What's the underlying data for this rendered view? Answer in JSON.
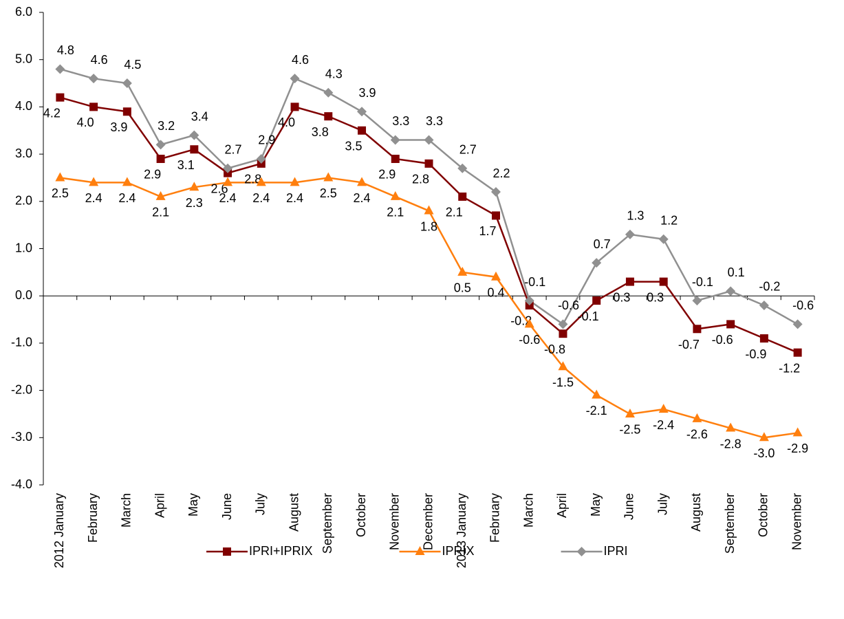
{
  "chart_data": {
    "type": "line",
    "categories": [
      "2012 January",
      "February",
      "March",
      "April",
      "May",
      "June",
      "July",
      "August",
      "September",
      "October",
      "November",
      "December",
      "2013 January",
      "February",
      "March",
      "April",
      "May",
      "June",
      "July",
      "August",
      "September",
      "October",
      "November"
    ],
    "series": [
      {
        "name": "IPRI+IPRIX",
        "color": "#800000",
        "marker": "square",
        "values": [
          4.2,
          4.0,
          3.9,
          2.9,
          3.1,
          2.6,
          2.8,
          4.0,
          3.8,
          3.5,
          2.9,
          2.8,
          2.1,
          1.7,
          -0.2,
          -0.8,
          -0.1,
          0.3,
          0.3,
          -0.7,
          -0.6,
          -0.9,
          -1.2
        ],
        "value_labels": [
          "4.2",
          "4.0",
          "3.9",
          "2.9",
          "3.1",
          "2.6",
          "2.8",
          "4.0",
          "3.8",
          "3.5",
          "2.9",
          "2.8",
          "2.1",
          "1.7",
          "-0.2",
          "-0.8",
          "-0.1",
          "0.3",
          "0.3",
          "-0.7",
          "-0.6",
          "-0.9",
          "-1.2"
        ]
      },
      {
        "name": "IPRIX",
        "color": "#ff7f0e",
        "marker": "triangle",
        "values": [
          2.5,
          2.4,
          2.4,
          2.1,
          2.3,
          2.4,
          2.4,
          2.4,
          2.5,
          2.4,
          2.1,
          1.8,
          0.5,
          0.4,
          -0.6,
          -1.5,
          -2.1,
          -2.5,
          -2.4,
          -2.6,
          -2.8,
          -3.0,
          -2.9
        ],
        "value_labels": [
          "2.5",
          "2.4",
          "2.4",
          "2.1",
          "2.3",
          "2.4",
          "2.4",
          "2.4",
          "2.5",
          "2.4",
          "2.1",
          "1.8",
          "0.5",
          "0.4",
          "-0.6",
          "-1.5",
          "-2.1",
          "-2.5",
          "-2.4",
          "-2.6",
          "-2.8",
          "-3.0",
          "-2.9"
        ]
      },
      {
        "name": "IPRI",
        "color": "#909090",
        "marker": "diamond",
        "values": [
          4.8,
          4.6,
          4.5,
          3.2,
          3.4,
          2.7,
          2.9,
          4.6,
          4.3,
          3.9,
          3.3,
          3.3,
          2.7,
          2.2,
          -0.1,
          -0.6,
          0.7,
          1.3,
          1.2,
          -0.1,
          0.1,
          -0.2,
          -0.6
        ],
        "value_labels": [
          "4.8",
          "4.6",
          "4.5",
          "3.2",
          "3.4",
          "2.7",
          "2.9",
          "4.6",
          "4.3",
          "3.9",
          "3.3",
          "3.3",
          "2.7",
          "2.2",
          "-0.1",
          "-0.6",
          "0.7",
          "1.3",
          "1.2",
          "-0.1",
          "0.1",
          "-0.2",
          "-0.6"
        ]
      }
    ],
    "ylim": [
      -4,
      6
    ],
    "yticks": [
      {
        "value": -4,
        "label": "-4.0"
      },
      {
        "value": -3,
        "label": "-3.0"
      },
      {
        "value": -2,
        "label": "-2.0"
      },
      {
        "value": -1,
        "label": "-1.0"
      },
      {
        "value": 0,
        "label": "0.0"
      },
      {
        "value": 1,
        "label": "1.0"
      },
      {
        "value": 2,
        "label": "2.0"
      },
      {
        "value": 3,
        "label": "3.0"
      },
      {
        "value": 4,
        "label": "4.0"
      },
      {
        "value": 5,
        "label": "5.0"
      },
      {
        "value": 6,
        "label": "6.0"
      }
    ],
    "grid": false,
    "legend": "bottom"
  }
}
